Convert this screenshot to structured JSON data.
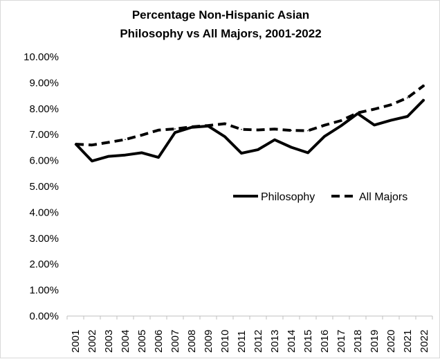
{
  "chart_data": {
    "type": "line",
    "title": [
      "Percentage Non-Hispanic  Asian",
      "Philosophy  vs All Majors,  2001-2022"
    ],
    "xlabel": "",
    "ylabel": "",
    "categories": [
      "2001",
      "2002",
      "2003",
      "2004",
      "2005",
      "2006",
      "2007",
      "2008",
      "2009",
      "2010",
      "2011",
      "2012",
      "2013",
      "2014",
      "2015",
      "2016",
      "2017",
      "2018",
      "2019",
      "2020",
      "2021",
      "2022"
    ],
    "y_tick_labels": [
      "0.00%",
      "1.00%",
      "2.00%",
      "3.00%",
      "4.00%",
      "5.00%",
      "6.00%",
      "7.00%",
      "8.00%",
      "9.00%",
      "10.00%"
    ],
    "ylim": [
      0,
      10
    ],
    "grid": false,
    "legend_placement": "right-middle",
    "series": [
      {
        "name": "Philosophy",
        "style": "solid",
        "color": "#000000",
        "values": [
          6.65,
          5.98,
          6.16,
          6.21,
          6.3,
          6.12,
          7.08,
          7.28,
          7.33,
          6.92,
          6.28,
          6.42,
          6.8,
          6.51,
          6.3,
          6.93,
          7.34,
          7.81,
          7.37,
          7.55,
          7.7,
          8.35
        ]
      },
      {
        "name": "All Majors",
        "style": "dashed",
        "color": "#000000",
        "values": [
          6.63,
          6.6,
          6.7,
          6.81,
          6.98,
          7.17,
          7.22,
          7.3,
          7.35,
          7.42,
          7.2,
          7.18,
          7.21,
          7.16,
          7.15,
          7.36,
          7.54,
          7.84,
          7.98,
          8.15,
          8.42,
          8.9
        ]
      }
    ]
  }
}
